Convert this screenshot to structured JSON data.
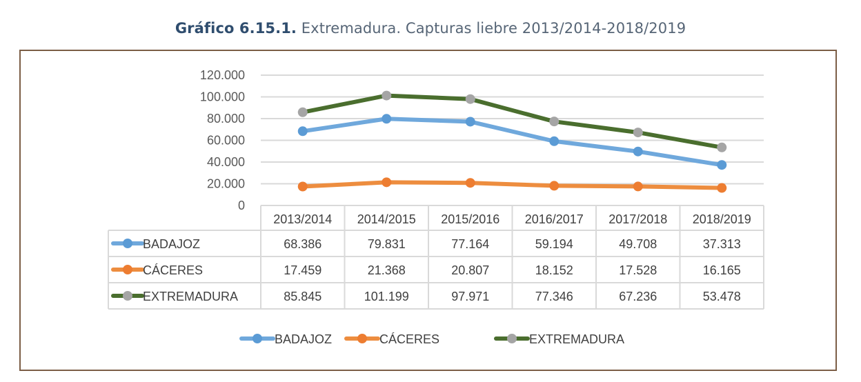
{
  "title": {
    "number": "Gráfico 6.15.1.",
    "text": "Extremadura. Capturas liebre 2013/2014-2018/2019"
  },
  "colors": {
    "frame": "#7b5d45",
    "grid": "#d9d9d9",
    "table_border": "#d9d9d9"
  },
  "chart_data": {
    "type": "line",
    "title": "Gráfico 6.15.1. Extremadura. Capturas liebre 2013/2014-2018/2019",
    "xlabel": "",
    "ylabel": "",
    "categories": [
      "2013/2014",
      "2014/2015",
      "2015/2016",
      "2016/2017",
      "2017/2018",
      "2018/2019"
    ],
    "y_ticks": [
      "0",
      "20.000",
      "40.000",
      "60.000",
      "80.000",
      "100.000",
      "120.000"
    ],
    "y_tick_values": [
      0,
      20000,
      40000,
      60000,
      80000,
      100000,
      120000
    ],
    "ylim": [
      0,
      120000
    ],
    "grid": true,
    "legend_position": "bottom",
    "data_table": true,
    "series": [
      {
        "name": "BADAJOZ",
        "line_color": "#6fa8dc",
        "marker_color": "#5b9bd5",
        "values": [
          68386,
          79831,
          77164,
          59194,
          49708,
          37313
        ],
        "labels": [
          "68.386",
          "79.831",
          "77.164",
          "59.194",
          "49.708",
          "37.313"
        ]
      },
      {
        "name": "CÁCERES",
        "line_color": "#ed8d3f",
        "marker_color": "#ed7d31",
        "values": [
          17459,
          21368,
          20807,
          18152,
          17528,
          16165
        ],
        "labels": [
          "17.459",
          "21.368",
          "20.807",
          "18.152",
          "17.528",
          "16.165"
        ]
      },
      {
        "name": "EXTREMADURA",
        "line_color": "#4a6e2e",
        "marker_color": "#a5a5a5",
        "values": [
          85845,
          101199,
          97971,
          77346,
          67236,
          53478
        ],
        "labels": [
          "85.845",
          "101.199",
          "97.971",
          "77.346",
          "67.236",
          "53.478"
        ]
      }
    ]
  }
}
